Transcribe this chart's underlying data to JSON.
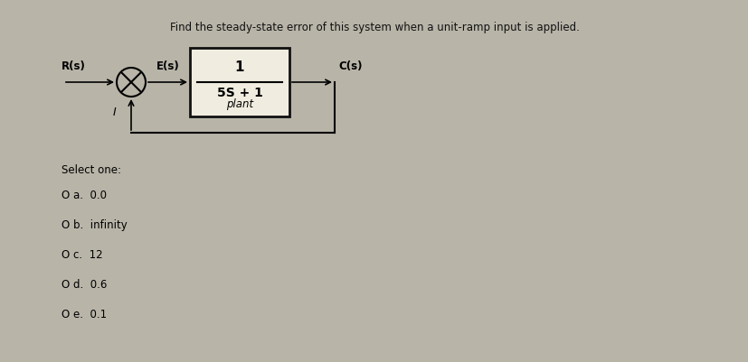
{
  "title": "Find the steady-state error of this system when a unit-ramp input is applied.",
  "title_fontsize": 8.5,
  "bg_color": "#b8b4a8",
  "block_facecolor": "#f0ede0",
  "block_edgecolor": "#111111",
  "select_one_text": "Select one:",
  "options": [
    {
      "label": "O a.",
      "value": "0.0"
    },
    {
      "label": "O b.",
      "value": "infinity"
    },
    {
      "label": "O c.",
      "value": "12"
    },
    {
      "label": "O d.",
      "value": "0.6"
    },
    {
      "label": "O e.",
      "value": "0.1"
    }
  ],
  "R_label": "R(s)",
  "E_label": "E(s)",
  "C_label": "C(s)",
  "plant_numerator": "1",
  "plant_denominator": "5S + 1",
  "plant_label": "plant"
}
